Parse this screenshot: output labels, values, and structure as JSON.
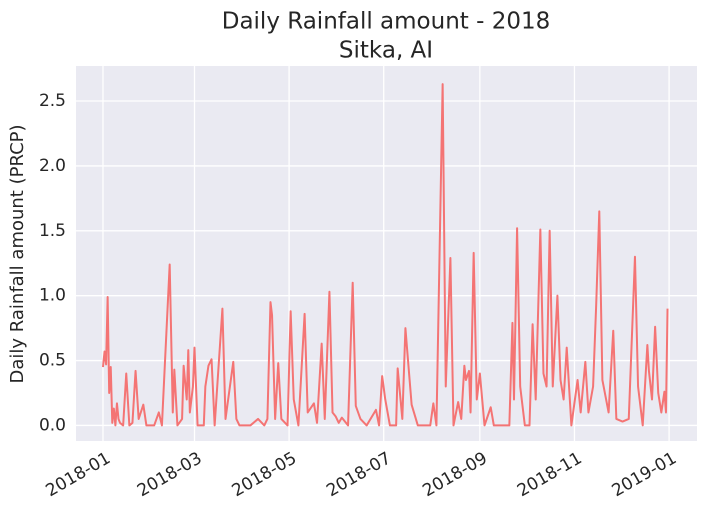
{
  "chart_data": {
    "type": "line",
    "title": "Daily Rainfall amount - 2018",
    "subtitle": "Sitka, AI",
    "y_label": "Daily Rainfall amount (PRCP)",
    "color": "#f47474",
    "grid": true,
    "xlim": [
      -17.4,
      383
    ],
    "ylim": [
      -0.12,
      2.77
    ],
    "xticks": [
      {
        "value": 0,
        "label": "2018-01"
      },
      {
        "value": 59,
        "label": "2018-03"
      },
      {
        "value": 120,
        "label": "2018-05"
      },
      {
        "value": 181,
        "label": "2018-07"
      },
      {
        "value": 243,
        "label": "2018-09"
      },
      {
        "value": 304,
        "label": "2018-11"
      },
      {
        "value": 365,
        "label": "2019-01"
      }
    ],
    "yticks": [
      {
        "value": 0,
        "label": "0.0"
      },
      0.5,
      {
        "value": 1,
        "label": "1.0"
      },
      1.5,
      {
        "value": 2,
        "label": "2.0"
      },
      2.5
    ],
    "x": [
      0,
      1,
      2,
      3,
      4,
      5,
      6,
      7,
      8,
      9,
      10,
      11,
      13,
      15,
      17,
      19,
      21,
      23,
      26,
      28,
      33,
      36,
      38,
      43,
      45,
      46,
      48,
      51,
      52,
      54,
      55,
      56,
      58,
      59,
      61,
      65,
      66,
      68,
      70,
      72,
      77,
      79,
      84,
      86,
      88,
      95,
      100,
      104,
      106,
      108,
      109,
      111,
      113,
      115,
      119,
      121,
      123,
      126,
      130,
      132,
      136,
      138,
      141,
      143,
      146,
      148,
      150,
      152,
      154,
      158,
      161,
      163,
      166,
      170,
      176,
      178,
      180,
      182,
      185,
      189,
      190,
      193,
      195,
      196,
      199,
      203,
      206,
      211,
      213,
      215,
      219,
      221,
      224,
      226,
      229,
      231,
      233,
      234,
      236,
      237,
      239,
      241,
      243,
      246,
      250,
      252,
      258,
      262,
      264,
      265,
      267,
      269,
      272,
      275,
      277,
      279,
      282,
      284,
      286,
      288,
      290,
      293,
      295,
      297,
      299,
      302,
      306,
      308,
      311,
      313,
      316,
      318,
      320,
      322,
      326,
      329,
      331,
      335,
      339,
      343,
      345,
      348,
      351,
      352,
      354,
      356,
      358,
      360,
      362,
      363,
      364
    ],
    "values": [
      0.45,
      0.57,
      0.47,
      0.99,
      0.25,
      0.45,
      0.02,
      0.13,
      0,
      0.17,
      0.05,
      0.02,
      0,
      0.4,
      0,
      0.02,
      0.42,
      0.05,
      0.16,
      0,
      0,
      0.1,
      0,
      1.24,
      0.1,
      0.43,
      0,
      0.05,
      0.46,
      0.2,
      0.58,
      0.1,
      0.3,
      0.6,
      0,
      0,
      0.3,
      0.46,
      0.51,
      0,
      0.9,
      0.05,
      0.49,
      0.05,
      0,
      0,
      0.05,
      0,
      0.05,
      0.95,
      0.85,
      0.05,
      0.48,
      0.05,
      0,
      0.88,
      0.2,
      0,
      0.86,
      0.1,
      0.17,
      0.02,
      0.63,
      0.05,
      1.03,
      0.1,
      0.07,
      0.02,
      0.06,
      0,
      1.1,
      0.15,
      0.05,
      0,
      0.12,
      0,
      0.38,
      0.2,
      0,
      0,
      0.44,
      0.05,
      0.75,
      0.6,
      0.16,
      0,
      0,
      0,
      0.17,
      0,
      2.63,
      0.3,
      1.29,
      0,
      0.18,
      0.05,
      0.46,
      0.35,
      0.42,
      0.1,
      1.33,
      0.2,
      0.4,
      0,
      0.14,
      0,
      0,
      0,
      0.79,
      0.2,
      1.52,
      0.3,
      0,
      0,
      0.78,
      0.2,
      1.51,
      0.4,
      0.3,
      1.5,
      0.3,
      1.0,
      0.35,
      0.2,
      0.6,
      0,
      0.35,
      0.1,
      0.49,
      0.1,
      0.3,
      0.93,
      1.65,
      0.35,
      0.1,
      0.73,
      0.05,
      0.03,
      0.05,
      1.3,
      0.3,
      0,
      0.62,
      0.42,
      0.2,
      0.76,
      0.25,
      0.1,
      0.26,
      0.1,
      0.9
    ]
  }
}
